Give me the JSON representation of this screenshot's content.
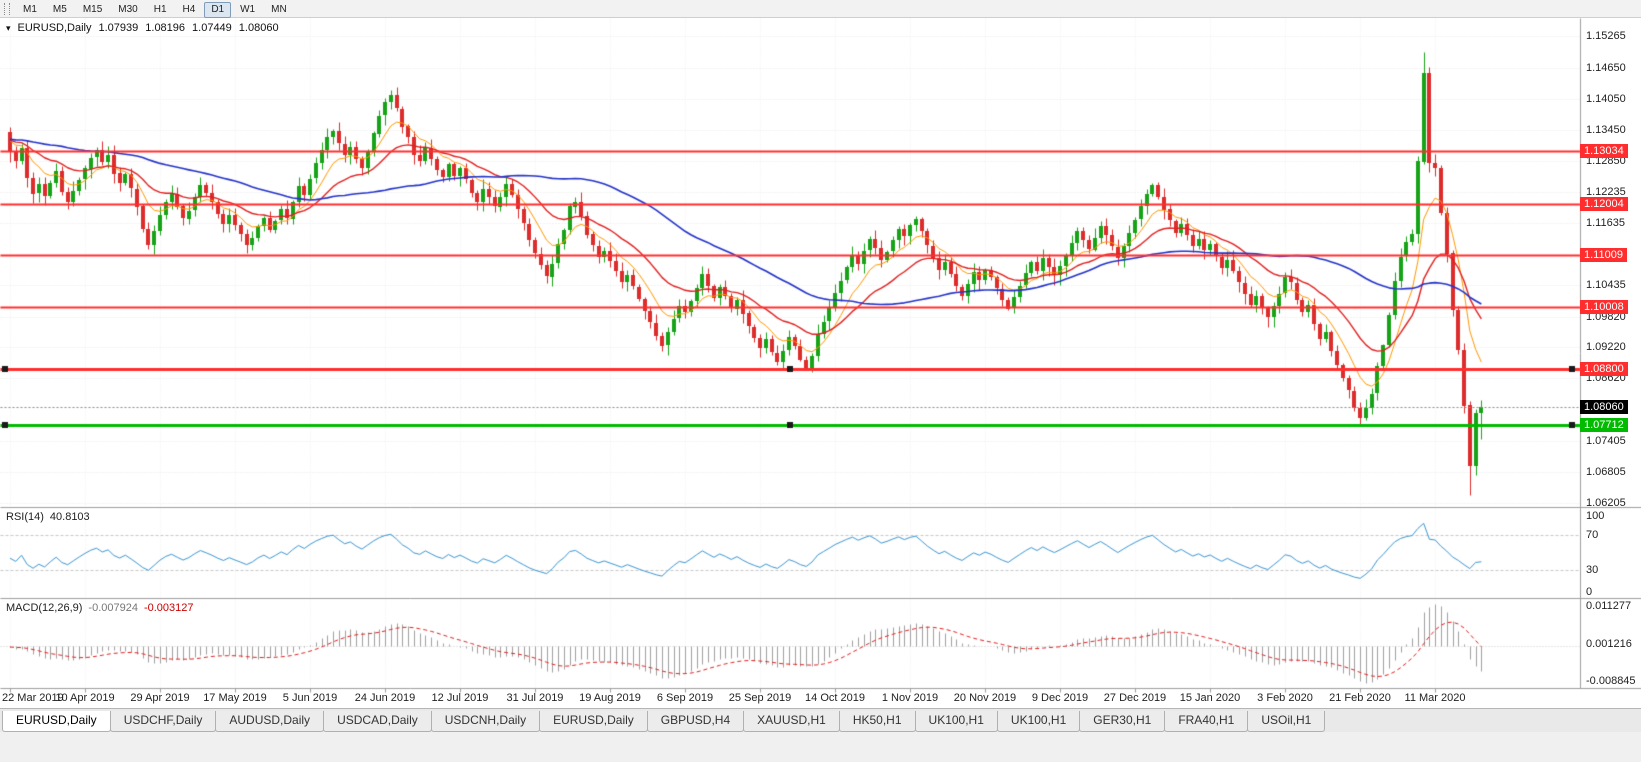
{
  "toolbar": {
    "timeframes": [
      {
        "label": "M1",
        "active": false
      },
      {
        "label": "M5",
        "active": false
      },
      {
        "label": "M15",
        "active": false
      },
      {
        "label": "M30",
        "active": false
      },
      {
        "label": "H1",
        "active": false
      },
      {
        "label": "H4",
        "active": false
      },
      {
        "label": "D1",
        "active": true
      },
      {
        "label": "W1",
        "active": false
      },
      {
        "label": "MN",
        "active": false
      }
    ]
  },
  "chart_header": {
    "symbol": "EURUSD,Daily",
    "open": "1.07939",
    "high": "1.08196",
    "low": "1.07449",
    "close": "1.08060"
  },
  "indicators": {
    "rsi": {
      "label": "RSI(14)",
      "value": "40.8103",
      "axis": [
        "100",
        "70",
        "30",
        "0"
      ],
      "levels": [
        70,
        30
      ],
      "color": "#3c96d2"
    },
    "macd": {
      "label": "MACD(12,26,9)",
      "value_main": "-0.007924",
      "value_signal": "-0.003127",
      "axis_top": "0.011277",
      "axis_mid": "0.001216",
      "axis_bottom": "-0.008845",
      "hist_color": "#9f9f9f",
      "signal_color": "#e02020"
    }
  },
  "tabs": [
    {
      "label": "EURUSD,Daily",
      "active": true
    },
    {
      "label": "USDCHF,Daily",
      "active": false
    },
    {
      "label": "AUDUSD,Daily",
      "active": false
    },
    {
      "label": "USDCAD,Daily",
      "active": false
    },
    {
      "label": "USDCNH,Daily",
      "active": false
    },
    {
      "label": "EURUSD,Daily",
      "active": false
    },
    {
      "label": "GBPUSD,H4",
      "active": false
    },
    {
      "label": "XAUUSD,H1",
      "active": false
    },
    {
      "label": "HK50,H1",
      "active": false
    },
    {
      "label": "UK100,H1",
      "active": false
    },
    {
      "label": "UK100,H1",
      "active": false
    },
    {
      "label": "GER30,H1",
      "active": false
    },
    {
      "label": "FRA40,H1",
      "active": false
    },
    {
      "label": "USOil,H1",
      "active": false
    }
  ],
  "chart_data": {
    "type": "candlestick",
    "symbol": "EURUSD",
    "timeframe": "Daily",
    "ohlc_current": {
      "open": 1.07939,
      "high": 1.08196,
      "low": 1.07449,
      "close": 1.0806
    },
    "y_range": {
      "max": 1.1562,
      "min": 1.0614
    },
    "y_ticks": [
      "1.15265",
      "1.14650",
      "1.14050",
      "1.13450",
      "1.12850",
      "1.12235",
      "1.11635",
      "1.10435",
      "1.09820",
      "1.09220",
      "1.08620",
      "1.07405",
      "1.06805",
      "1.06205"
    ],
    "x_ticks": [
      {
        "i": 0,
        "label": "22 Mar 2019"
      },
      {
        "i": 13,
        "label": "10 Apr 2019"
      },
      {
        "i": 26,
        "label": "29 Apr 2019"
      },
      {
        "i": 39,
        "label": "17 May 2019"
      },
      {
        "i": 52,
        "label": "5 Jun 2019"
      },
      {
        "i": 65,
        "label": "24 Jun 2019"
      },
      {
        "i": 78,
        "label": "12 Jul 2019"
      },
      {
        "i": 91,
        "label": "31 Jul 2019"
      },
      {
        "i": 104,
        "label": "19 Aug 2019"
      },
      {
        "i": 117,
        "label": "6 Sep 2019"
      },
      {
        "i": 130,
        "label": "25 Sep 2019"
      },
      {
        "i": 143,
        "label": "14 Oct 2019"
      },
      {
        "i": 156,
        "label": "1 Nov 2019"
      },
      {
        "i": 169,
        "label": "20 Nov 2019"
      },
      {
        "i": 182,
        "label": "9 Dec 2019"
      },
      {
        "i": 195,
        "label": "27 Dec 2019"
      },
      {
        "i": 208,
        "label": "15 Jan 2020"
      },
      {
        "i": 221,
        "label": "3 Feb 2020"
      },
      {
        "i": 234,
        "label": "21 Feb 2020"
      },
      {
        "i": 247,
        "label": "11 Mar 2020"
      }
    ],
    "levels": [
      {
        "price": 1.13034,
        "label": "1.13034",
        "color": "#ff2d2d",
        "width": 2,
        "handles": false
      },
      {
        "price": 1.12004,
        "label": "1.12004",
        "color": "#ff2d2d",
        "width": 2,
        "handles": false
      },
      {
        "price": 1.11009,
        "label": "1.11009",
        "color": "#ff2d2d",
        "width": 2,
        "handles": false
      },
      {
        "price": 1.10008,
        "label": "1.10008",
        "color": "#ff2d2d",
        "width": 2,
        "handles": false
      },
      {
        "price": 1.088,
        "label": "1.08800",
        "color": "#ff2d2d",
        "width": 3,
        "handles": true
      },
      {
        "price": 1.07712,
        "label": "1.07712",
        "color": "#00bb00",
        "width": 3,
        "handles": true
      }
    ],
    "current_price": {
      "value": 1.0806,
      "label": "1.08060",
      "badge_color": "#000000"
    },
    "colors": {
      "bull": "#17a317",
      "bear": "#dd2c2c",
      "grid": "#e8e8e8",
      "separator": "#9e9e9e"
    },
    "moving_averages": [
      {
        "period": 8,
        "method": "ema",
        "color": "#ff9800",
        "width": 1
      },
      {
        "period": 20,
        "method": "ema",
        "color": "#e02020",
        "width": 1.4
      },
      {
        "period": 50,
        "method": "sma",
        "color": "#2433c8",
        "width": 1.6
      }
    ],
    "warmup_closes": [
      1.1335,
      1.1328,
      1.1342,
      1.135,
      1.1338,
      1.1322,
      1.131,
      1.1325,
      1.134,
      1.1331,
      1.1318,
      1.1305,
      1.1295,
      1.1308,
      1.1322,
      1.1338,
      1.1352,
      1.1344,
      1.133,
      1.1315,
      1.1302,
      1.1318,
      1.1335,
      1.1348,
      1.136,
      1.1345,
      1.1332,
      1.132,
      1.1308,
      1.1296,
      1.131,
      1.1326,
      1.1342,
      1.133,
      1.1316,
      1.1304,
      1.1318,
      1.1332,
      1.1346,
      1.1338
    ],
    "closes": [
      1.1302,
      1.1285,
      1.131,
      1.1252,
      1.1221,
      1.1239,
      1.1216,
      1.1241,
      1.1265,
      1.1224,
      1.1205,
      1.1226,
      1.1248,
      1.127,
      1.1291,
      1.1305,
      1.1282,
      1.1296,
      1.126,
      1.1241,
      1.1258,
      1.123,
      1.1196,
      1.1152,
      1.112,
      1.1148,
      1.118,
      1.1205,
      1.1221,
      1.1196,
      1.1172,
      1.1188,
      1.1214,
      1.1238,
      1.1222,
      1.1204,
      1.1181,
      1.1162,
      1.1179,
      1.116,
      1.1142,
      1.1121,
      1.1135,
      1.1158,
      1.1174,
      1.115,
      1.1168,
      1.119,
      1.1172,
      1.1205,
      1.1236,
      1.1218,
      1.125,
      1.128,
      1.1305,
      1.133,
      1.1342,
      1.1318,
      1.1296,
      1.1312,
      1.1288,
      1.127,
      1.1302,
      1.1338,
      1.1372,
      1.1398,
      1.1412,
      1.1386,
      1.1352,
      1.133,
      1.1296,
      1.1285,
      1.131,
      1.1288,
      1.1266,
      1.1252,
      1.1278,
      1.1254,
      1.127,
      1.1248,
      1.1222,
      1.1205,
      1.123,
      1.1214,
      1.1196,
      1.1215,
      1.124,
      1.1218,
      1.119,
      1.1162,
      1.113,
      1.1104,
      1.1082,
      1.106,
      1.1085,
      1.1122,
      1.115,
      1.1196,
      1.1205,
      1.1178,
      1.1142,
      1.112,
      1.1098,
      1.111,
      1.109,
      1.107,
      1.1048,
      1.1062,
      1.104,
      1.1016,
      1.0992,
      1.097,
      1.0945,
      1.0926,
      1.0952,
      1.0978,
      1.1002,
      1.099,
      1.1012,
      1.1038,
      1.1065,
      1.1042,
      1.1018,
      1.104,
      1.1022,
      1.0998,
      1.1015,
      1.0988,
      1.0962,
      1.094,
      1.092,
      1.0938,
      1.0912,
      1.0895,
      1.0916,
      1.0942,
      1.0925,
      1.0898,
      1.0882,
      1.0905,
      1.0948,
      1.0972,
      1.0998,
      1.1028,
      1.1052,
      1.1078,
      1.1102,
      1.1085,
      1.111,
      1.1132,
      1.1115,
      1.1092,
      1.1108,
      1.113,
      1.1152,
      1.1138,
      1.116,
      1.1172,
      1.1148,
      1.112,
      1.1096,
      1.1072,
      1.1088,
      1.1064,
      1.104,
      1.1022,
      1.1045,
      1.1068,
      1.1052,
      1.1072,
      1.1058,
      1.1036,
      1.1015,
      1.0998,
      1.102,
      1.1042,
      1.1066,
      1.1088,
      1.107,
      1.1096,
      1.1078,
      1.1062,
      1.108,
      1.1102,
      1.1125,
      1.1148,
      1.113,
      1.1112,
      1.1135,
      1.1158,
      1.114,
      1.1118,
      1.1096,
      1.112,
      1.1145,
      1.117,
      1.1196,
      1.122,
      1.1238,
      1.1215,
      1.119,
      1.1168,
      1.1145,
      1.1162,
      1.114,
      1.1118,
      1.1132,
      1.111,
      1.1122,
      1.1098,
      1.1076,
      1.1092,
      1.107,
      1.1048,
      1.1026,
      1.1005,
      1.1022,
      1.0998,
      1.098,
      1.1002,
      1.1026,
      1.1058,
      1.1048,
      1.1015,
      1.0992,
      1.1005,
      1.0968,
      1.0938,
      1.0952,
      1.0915,
      1.0888,
      1.0862,
      1.0838,
      1.0805,
      1.0785,
      1.0805,
      1.0832,
      1.0885,
      1.0926,
      1.0985,
      1.1052,
      1.1098,
      1.1126,
      1.1142,
      1.1284,
      1.1456,
      1.1281,
      1.1271,
      1.1184,
      1.1105,
      1.0995,
      1.0918,
      1.081,
      1.0692,
      1.0794,
      1.0806
    ],
    "overrides": {
      "0": {
        "open": 1.134
      },
      "138": {
        "low": 1.0879
      },
      "245": {
        "high": 1.1495
      },
      "253": {
        "low": 1.0636
      },
      "255": {
        "open": 1.07939,
        "high": 1.08196,
        "low": 1.07449,
        "close": 1.0806
      }
    }
  }
}
